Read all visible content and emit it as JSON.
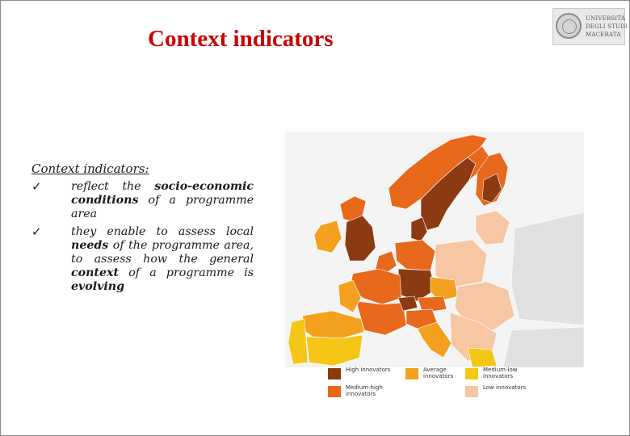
{
  "slide": {
    "title": "Context indicators"
  },
  "logo": {
    "name": "university-of-macerata-logo",
    "lines": [
      "UNIVERSITÀ",
      "DEGLI STUDI",
      "MACERATA"
    ]
  },
  "content": {
    "heading": "Context indicators",
    "heading_suffix": ":",
    "check_icon": "✓",
    "bullets": [
      {
        "parts": [
          {
            "text": "reflect the ",
            "bold": false
          },
          {
            "text": "socio-economic conditions",
            "bold": true
          },
          {
            "text": " of a programme area",
            "bold": false
          }
        ]
      },
      {
        "parts": [
          {
            "text": "they enable to assess local ",
            "bold": false
          },
          {
            "text": "needs",
            "bold": true
          },
          {
            "text": " of the programme area, to assess how the general ",
            "bold": false
          },
          {
            "text": "context",
            "bold": true
          },
          {
            "text": " of a programme is ",
            "bold": false
          },
          {
            "text": "evolving",
            "bold": true
          }
        ]
      }
    ]
  },
  "map": {
    "name": "europe-regional-innovation-map",
    "colors": {
      "high": "#8b3a12",
      "medium_high": "#e8681c",
      "average": "#f3a11f",
      "medium_low": "#f5c518",
      "low": "#f6c7a2",
      "water": "#f4f4f4",
      "outside": "#e1e1e1"
    }
  },
  "legend": [
    {
      "label": "High innovators",
      "color": "#8b3a12"
    },
    {
      "label": "Average innovators",
      "color": "#f3a11f"
    },
    {
      "label": "Medium-low innovators",
      "color": "#f5c518"
    },
    {
      "label": "Medium-high innovators",
      "color": "#e8681c"
    },
    {
      "label": "Low innovators",
      "color": "#f6c7a2"
    }
  ]
}
